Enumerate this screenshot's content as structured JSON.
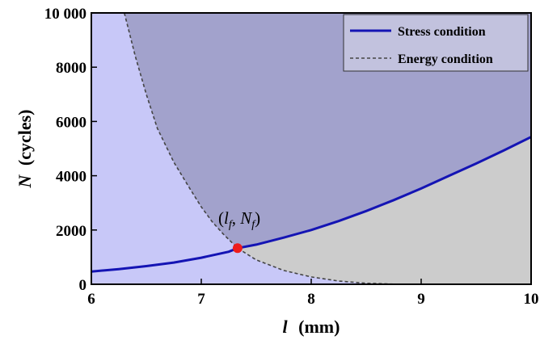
{
  "chart_data": {
    "type": "line",
    "xlabel": {
      "var": "l",
      "unit": "(mm)"
    },
    "ylabel": {
      "var": "N",
      "unit": "(cycles)"
    },
    "xlim": [
      6,
      10
    ],
    "ylim": [
      0,
      10000
    ],
    "xticks": [
      "6",
      "7",
      "8",
      "9",
      "10"
    ],
    "yticks": [
      "0",
      "2000",
      "4000",
      "6000",
      "8000",
      "10 000"
    ],
    "grid": false,
    "legend_position": "top-right",
    "series": [
      {
        "name": "Stress condition",
        "style": "solid",
        "color": "#1414b4",
        "x": [
          6.0,
          6.25,
          6.5,
          6.75,
          7.0,
          7.25,
          7.33,
          7.5,
          7.75,
          8.0,
          8.25,
          8.5,
          8.75,
          9.0,
          9.25,
          9.5,
          9.75,
          10.0
        ],
        "y": [
          470,
          560,
          670,
          800,
          980,
          1200,
          1330,
          1460,
          1720,
          2000,
          2330,
          2700,
          3100,
          3530,
          3990,
          4450,
          4930,
          5430
        ]
      },
      {
        "name": "Energy condition",
        "style": "dashed",
        "color": "#444444",
        "x": [
          6.3,
          6.4,
          6.5,
          6.6,
          6.75,
          6.9,
          7.0,
          7.1,
          7.2,
          7.33,
          7.5,
          7.75,
          8.0,
          8.25,
          8.5,
          8.75,
          8.85
        ],
        "y": [
          10000,
          8400,
          7000,
          5750,
          4500,
          3500,
          2850,
          2300,
          1850,
          1330,
          900,
          510,
          270,
          120,
          40,
          5,
          0
        ]
      }
    ],
    "annotations": [
      {
        "text_parts": [
          "(",
          "l",
          "f",
          ", ",
          "N",
          "f",
          ")"
        ],
        "x": 7.33,
        "y": 1330,
        "marker_color": "#ee1c1c"
      }
    ],
    "region_colors": {
      "left_region": "#c8c8f8",
      "upper_region": "#a2a2cc",
      "lower_right_region": "#cccccc"
    }
  }
}
